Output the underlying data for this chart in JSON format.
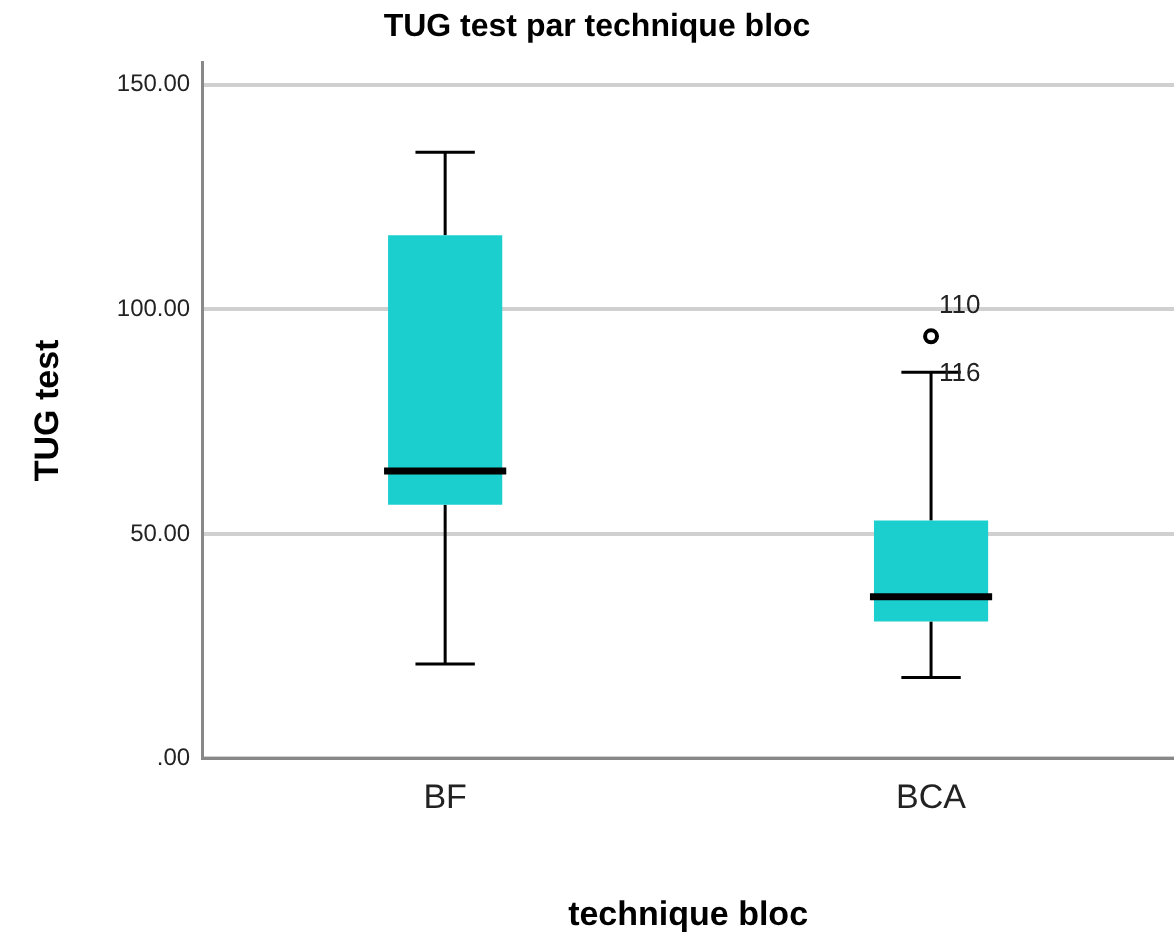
{
  "chart_data": {
    "type": "box",
    "title": "TUG test par technique bloc",
    "xlabel": "technique bloc",
    "ylabel": "TUG test",
    "categories": [
      "BF",
      "BCA"
    ],
    "color": "#1ccfcf",
    "boxes": [
      {
        "low": 21,
        "q1": 56.5,
        "median": 64,
        "q3": 116.5,
        "high": 135
      },
      {
        "low": 18,
        "q1": 30.5,
        "median": 36,
        "q3": 53,
        "high": 86,
        "outliers": [
          94
        ]
      }
    ],
    "annotations": [
      "110",
      "116"
    ],
    "ylim": [
      0,
      155
    ],
    "yticks": [
      {
        "value": 0,
        "label": ".00"
      },
      {
        "value": 50,
        "label": "50.00"
      },
      {
        "value": 100,
        "label": "100.00"
      },
      {
        "value": 150,
        "label": "150.00"
      }
    ],
    "grid": "y",
    "legend": false
  }
}
